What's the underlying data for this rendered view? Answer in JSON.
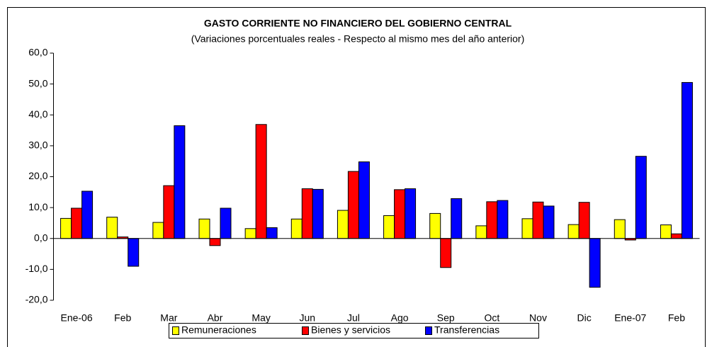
{
  "chart_data": {
    "type": "bar",
    "title": "GASTO CORRIENTE NO FINANCIERO DEL GOBIERNO CENTRAL",
    "subtitle": "(Variaciones porcentuales reales - Respecto al mismo mes del año anterior)",
    "categories": [
      "Ene-06",
      "Feb",
      "Mar",
      "Abr",
      "May",
      "Jun",
      "Jul",
      "Ago",
      "Sep",
      "Oct",
      "Nov",
      "Dic",
      "Ene-07",
      "Feb"
    ],
    "series": [
      {
        "name": "Remuneraciones",
        "color": "#ffff00",
        "values": [
          6.5,
          6.9,
          5.2,
          6.3,
          3.2,
          6.3,
          9.1,
          7.4,
          8.1,
          4.1,
          6.4,
          4.5,
          6.1,
          4.4
        ]
      },
      {
        "name": "Bienes y servicios",
        "color": "#ff0000",
        "values": [
          9.8,
          0.5,
          17.1,
          -2.3,
          36.9,
          16.1,
          21.7,
          15.8,
          -9.4,
          11.9,
          11.8,
          11.7,
          -0.5,
          1.5
        ]
      },
      {
        "name": "Transferencias",
        "color": "#0000ff",
        "values": [
          15.3,
          -9.0,
          36.5,
          9.8,
          3.5,
          15.9,
          24.8,
          16.1,
          12.9,
          12.3,
          10.5,
          -15.8,
          26.6,
          50.5
        ]
      }
    ],
    "ylim": [
      -20,
      60
    ],
    "yticks": [
      {
        "value": -20,
        "label": "-20,0"
      },
      {
        "value": -10,
        "label": "-10,0"
      },
      {
        "value": 0,
        "label": "0,0"
      },
      {
        "value": 10,
        "label": "10,0"
      },
      {
        "value": 20,
        "label": "20,0"
      },
      {
        "value": 30,
        "label": "30,0"
      },
      {
        "value": 40,
        "label": "40,0"
      },
      {
        "value": 50,
        "label": "50,0"
      },
      {
        "value": 60,
        "label": "60,0"
      }
    ],
    "legend": "bottom"
  }
}
